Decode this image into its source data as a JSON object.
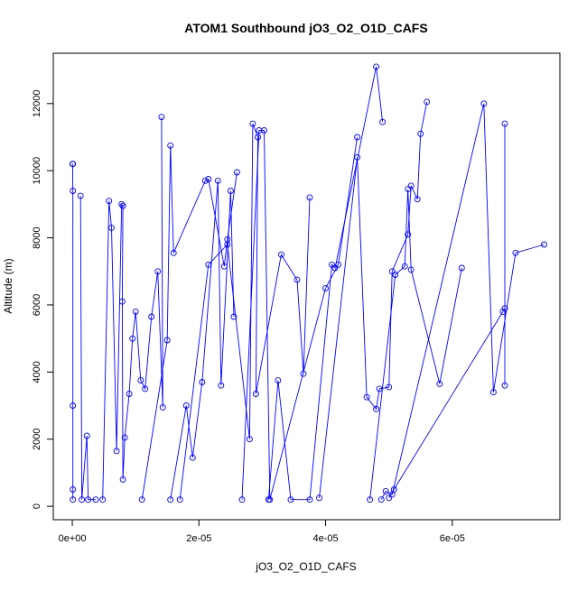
{
  "chart_data": {
    "type": "line",
    "title": "ATOM1 Southbound jO3_O2_O1D_CAFS",
    "xlabel": "jO3_O2_O1D_CAFS",
    "ylabel": "Altitude (m)",
    "xlim": [
      -3e-06,
      7.7e-05
    ],
    "ylim": [
      -400,
      13500
    ],
    "xticks": [
      0,
      2e-05,
      4e-05,
      6e-05
    ],
    "xtick_labels": [
      "0e+00",
      "2e-05",
      "4e-05",
      "6e-05"
    ],
    "yticks": [
      0,
      2000,
      4000,
      6000,
      8000,
      10000,
      12000
    ],
    "ytick_labels": [
      "0",
      "2000",
      "4000",
      "6000",
      "8000",
      "10000",
      "12000"
    ],
    "grid": false,
    "color": "#0000ff",
    "markers": "open-circle",
    "series": [
      {
        "x": [
          1e-07,
          5e-08,
          1e-07,
          1e-07,
          1e-07,
          1e-07
        ],
        "y": [
          10200,
          10200,
          9400,
          3000,
          500,
          200
        ]
      },
      {
        "x": [
          1.3e-06,
          1.5e-06,
          2.3e-06,
          2.5e-06,
          3.7e-06
        ],
        "y": [
          9250,
          200,
          2100,
          200,
          200
        ]
      },
      {
        "x": [
          4.8e-06,
          5.8e-06,
          6.2e-06,
          7e-06,
          7.8e-06,
          8e-06,
          7.9e-06,
          8e-06,
          8.3e-06,
          9e-06,
          9.5e-06,
          1e-05,
          1.08e-05,
          1.15e-05,
          1.25e-05,
          1.35e-05,
          1.43e-05,
          1.41e-05
        ],
        "y": [
          200,
          9100,
          8300,
          1650,
          9000,
          8950,
          6100,
          800,
          2050,
          3350,
          5000,
          5800,
          3750,
          3500,
          5650,
          7000,
          2950,
          11600
        ]
      },
      {
        "x": [
          1.1e-05,
          1.5e-05,
          1.55e-05,
          1.6e-05,
          2.1e-05,
          2.15e-05,
          2.4e-05,
          2.45e-05,
          2.6e-05
        ],
        "y": [
          200,
          4950,
          10750,
          7550,
          9700,
          9750,
          7150,
          7950,
          9950
        ]
      },
      {
        "x": [
          1.55e-05,
          1.8e-05,
          1.9e-05,
          2.05e-05,
          2.3e-05,
          2.35e-05,
          2.5e-05,
          2.55e-05
        ],
        "y": [
          200,
          3000,
          1450,
          3700,
          9700,
          3600,
          9400,
          5650
        ]
      },
      {
        "x": [
          1.7e-05,
          2.15e-05,
          2.45e-05,
          2.8e-05,
          2.85e-05,
          2.93e-05,
          2.9e-05,
          3.3e-05,
          3.55e-05,
          3.65e-05,
          3.75e-05
        ],
        "y": [
          200,
          7200,
          7800,
          2000,
          11400,
          11000,
          3350,
          7500,
          6750,
          3950,
          9200
        ]
      },
      {
        "x": [
          2.68e-05,
          2.95e-05,
          3.03e-05,
          3.12e-05,
          4e-05,
          4.2e-05,
          4.5e-05
        ],
        "y": [
          200,
          11200,
          11200,
          200,
          6500,
          7200,
          11000
        ]
      },
      {
        "x": [
          3.1e-05,
          3.25e-05,
          3.45e-05,
          3.75e-05,
          4.1e-05,
          4.15e-05,
          4.8e-05,
          4.9e-05
        ],
        "y": [
          200,
          3750,
          200,
          200,
          7200,
          7100,
          13100,
          11450
        ]
      },
      {
        "x": [
          3.9e-05,
          4.5e-05,
          4.65e-05,
          4.8e-05,
          4.85e-05,
          5e-05,
          5.05e-05,
          5.3e-05,
          5.35e-05,
          5.45e-05,
          5.5e-05,
          5.6e-05
        ],
        "y": [
          250,
          10400,
          3250,
          2900,
          3500,
          3550,
          7000,
          8100,
          9550,
          9150,
          11100,
          12050
        ]
      },
      {
        "x": [
          4.7e-05,
          5.1e-05,
          5.25e-05,
          5.3e-05,
          5.35e-05,
          5.8e-05,
          6.15e-05
        ],
        "y": [
          200,
          6900,
          7150,
          9450,
          7050,
          3650,
          7100
        ]
      },
      {
        "x": [
          4.88e-05,
          4.95e-05,
          5.05e-05,
          6.5e-05,
          6.65e-05,
          7e-05,
          7.45e-05
        ],
        "y": [
          200,
          450,
          350,
          12000,
          3400,
          7550,
          7800
        ]
      },
      {
        "x": [
          5e-05,
          5.08e-05,
          6.8e-05,
          6.83e-05,
          6.83e-05,
          6.83e-05
        ],
        "y": [
          250,
          500,
          5800,
          5900,
          11400,
          3600
        ]
      }
    ]
  }
}
